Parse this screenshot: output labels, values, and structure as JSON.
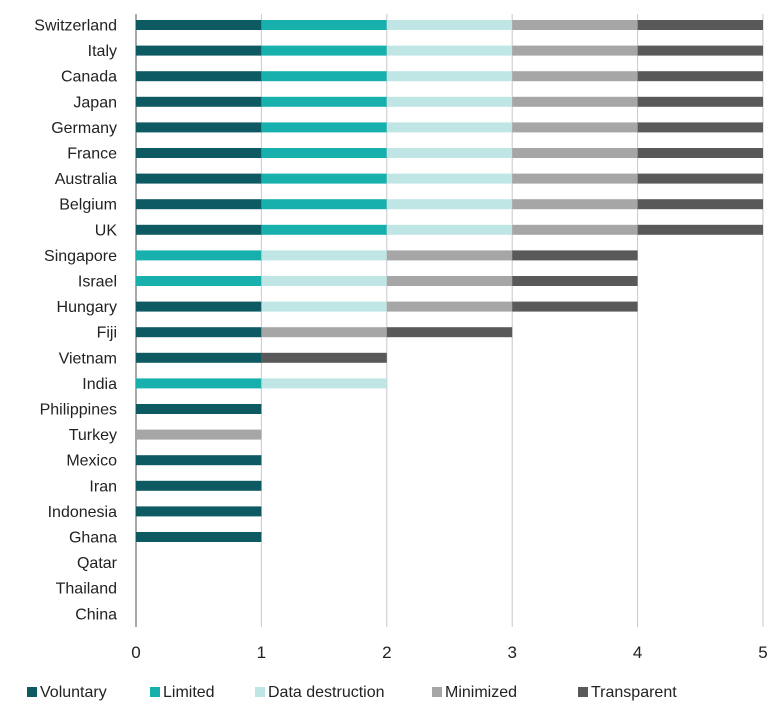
{
  "chart_data": {
    "type": "bar",
    "orientation": "horizontal",
    "stacked": true,
    "categories": [
      "Switzerland",
      "Italy",
      "Canada",
      "Japan",
      "Germany",
      "France",
      "Australia",
      "Belgium",
      "UK",
      "Singapore",
      "Israel",
      "Hungary",
      "Fiji",
      "Vietnam",
      "India",
      "Philippines",
      "Turkey",
      "Mexico",
      "Iran",
      "Indonesia",
      "Ghana",
      "Qatar",
      "Thailand",
      "China"
    ],
    "series": [
      {
        "name": "Voluntary",
        "color": "#0e5a63",
        "values": [
          1,
          1,
          1,
          1,
          1,
          1,
          1,
          1,
          1,
          0,
          0,
          1,
          1,
          1,
          0,
          1,
          0,
          1,
          1,
          1,
          1,
          0,
          0,
          0
        ]
      },
      {
        "name": "Limited",
        "color": "#17b0ad",
        "values": [
          1,
          1,
          1,
          1,
          1,
          1,
          1,
          1,
          1,
          1,
          1,
          0,
          0,
          0,
          1,
          0,
          0,
          0,
          0,
          0,
          0,
          0,
          0,
          0
        ]
      },
      {
        "name": "Data destruction",
        "color": "#bfe6e4",
        "values": [
          1,
          1,
          1,
          1,
          1,
          1,
          1,
          1,
          1,
          1,
          1,
          1,
          0,
          0,
          1,
          0,
          0,
          0,
          0,
          0,
          0,
          0,
          0,
          0
        ]
      },
      {
        "name": "Minimized",
        "color": "#a6a6a6",
        "values": [
          1,
          1,
          1,
          1,
          1,
          1,
          1,
          1,
          1,
          1,
          1,
          1,
          1,
          0,
          0,
          0,
          1,
          0,
          0,
          0,
          0,
          0,
          0,
          0
        ]
      },
      {
        "name": "Transparent",
        "color": "#595959",
        "values": [
          1,
          1,
          1,
          1,
          1,
          1,
          1,
          1,
          1,
          1,
          1,
          1,
          1,
          1,
          0,
          0,
          0,
          0,
          0,
          0,
          0,
          0,
          0,
          0
        ]
      }
    ],
    "x_ticks": [
      "0",
      "1",
      "2",
      "3",
      "4",
      "5"
    ],
    "xlim": [
      0,
      5
    ],
    "grid": "vertical",
    "legend_position": "bottom"
  }
}
